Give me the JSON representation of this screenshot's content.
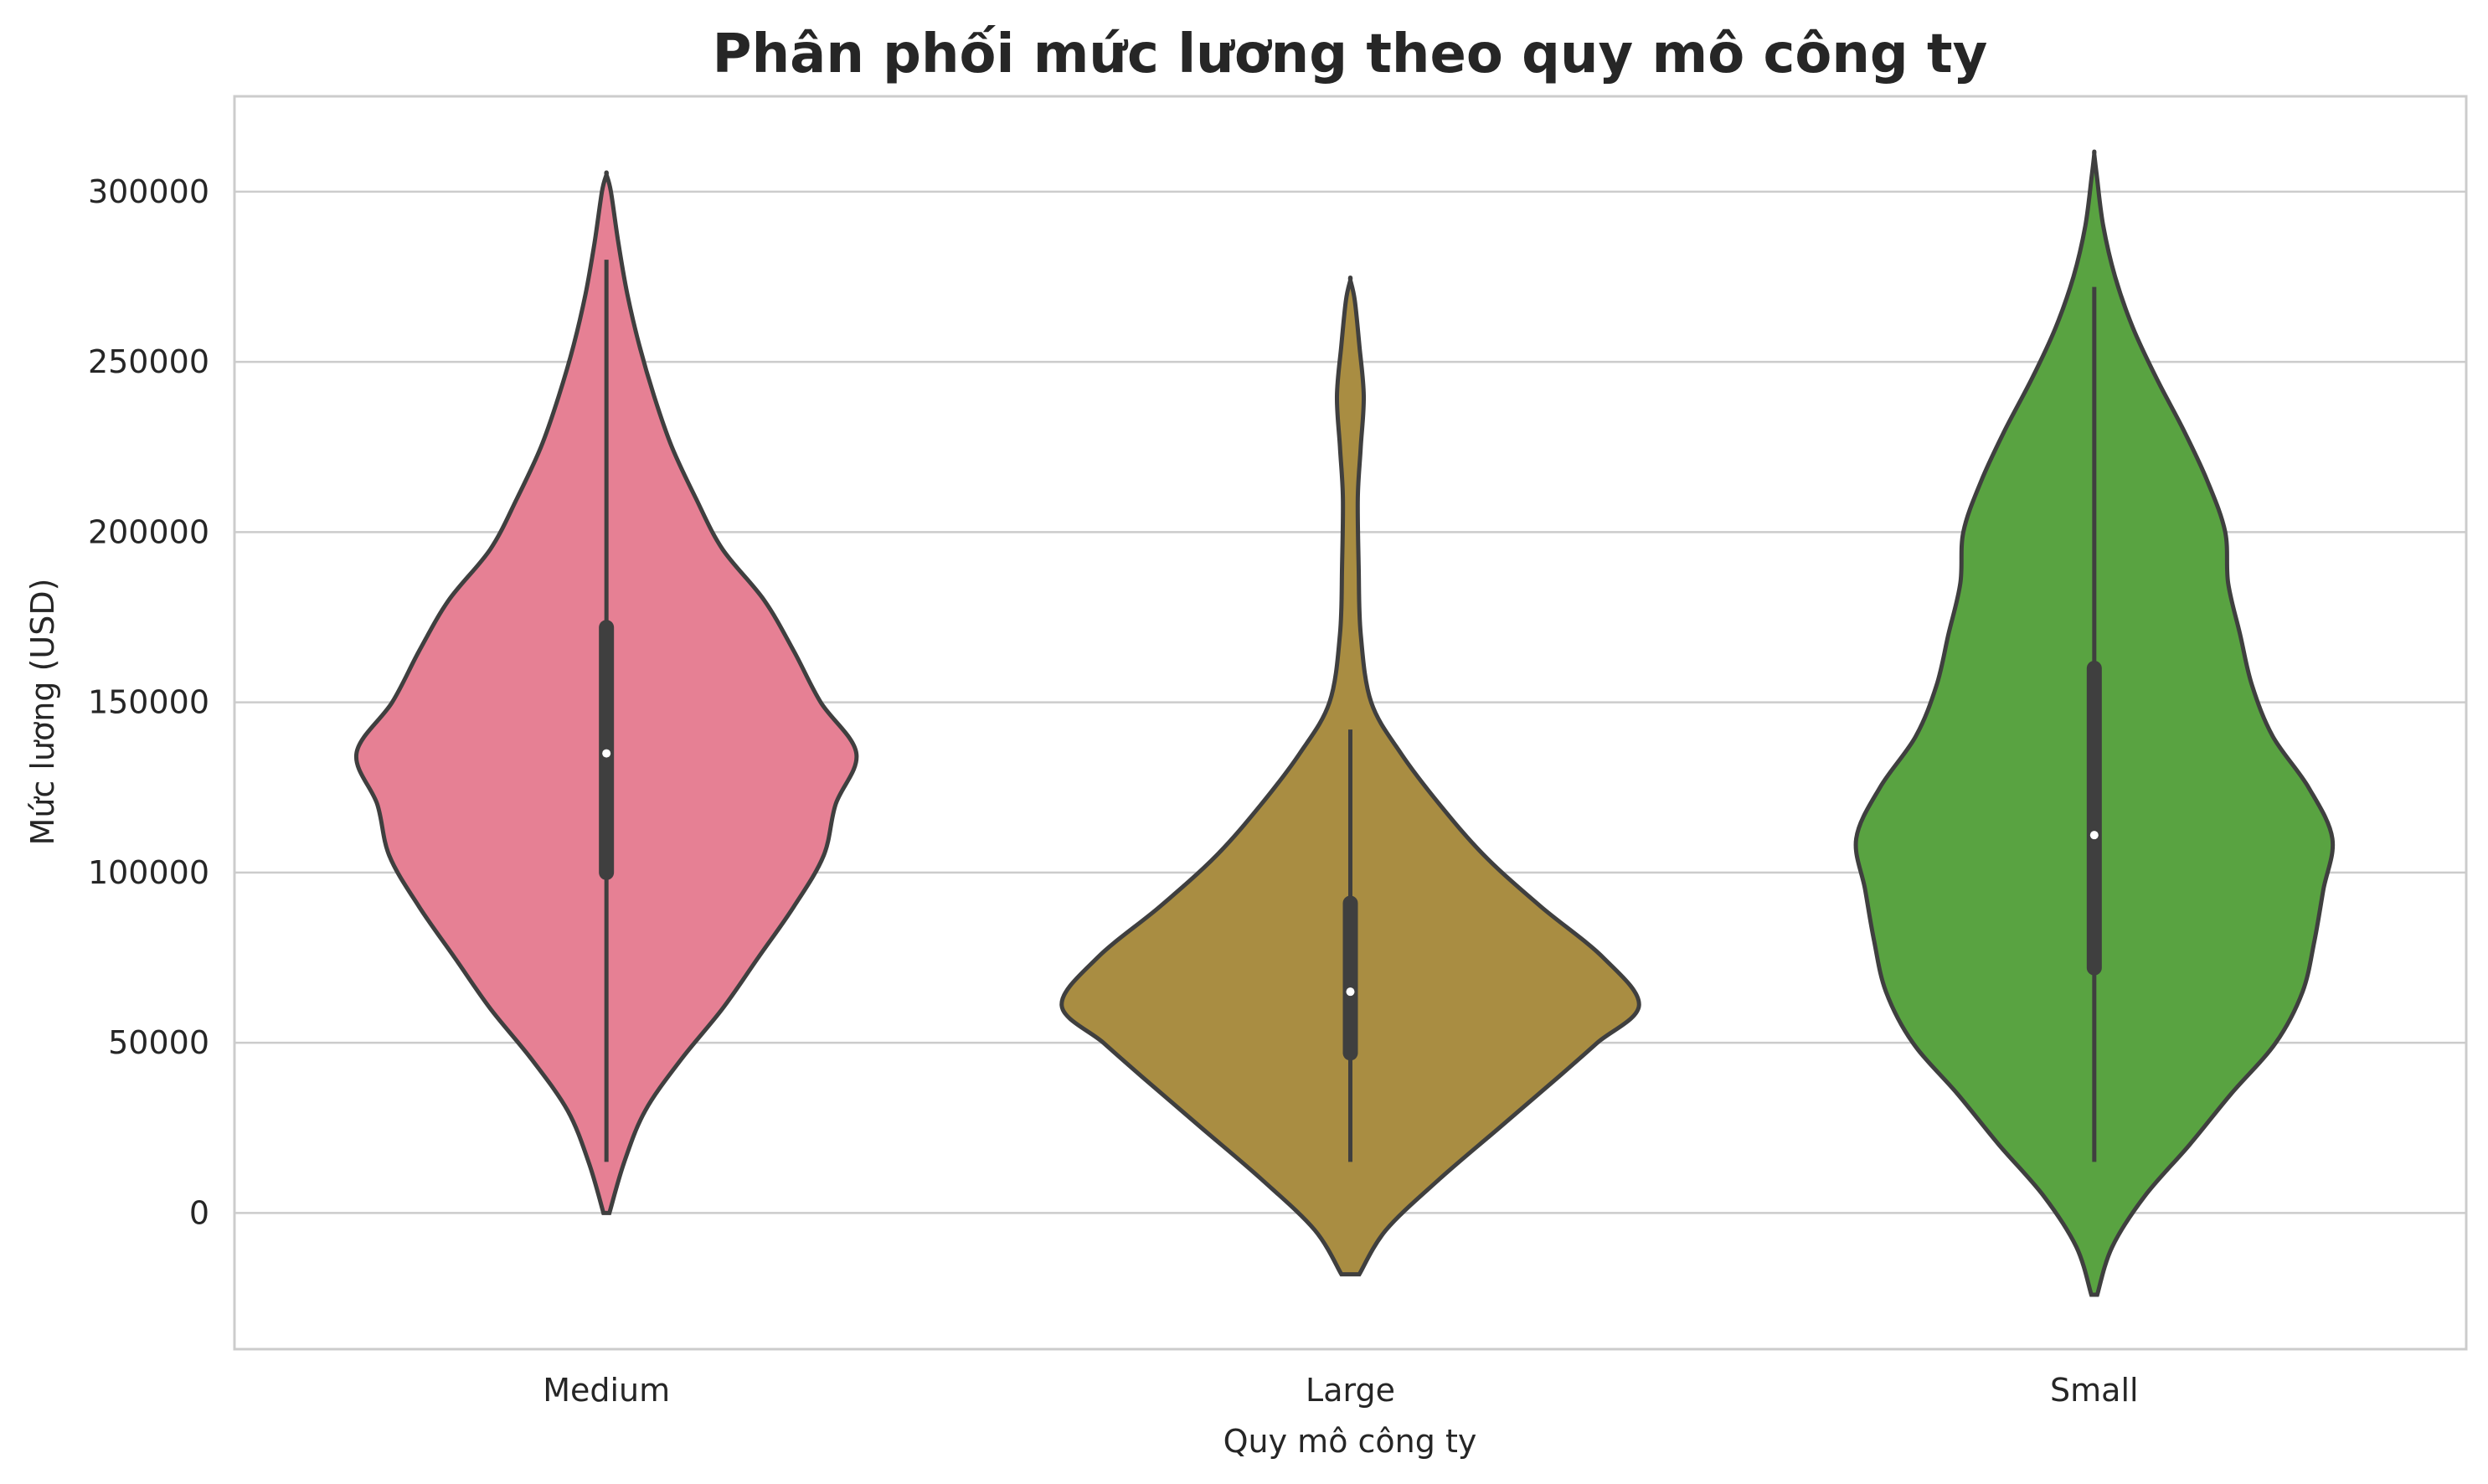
{
  "chart_data": {
    "type": "violin",
    "title": "Phân phối mức lương theo quy mô công ty",
    "xlabel": "Quy mô công ty",
    "ylabel": "Mức lương (USD)",
    "categories": [
      "Medium",
      "Large",
      "Small"
    ],
    "ylim": [
      -40000,
      328000
    ],
    "yticks": [
      0,
      50000,
      100000,
      150000,
      200000,
      250000,
      300000
    ],
    "ytick_labels": [
      "0",
      "50000",
      "100000",
      "150000",
      "200000",
      "250000",
      "300000"
    ],
    "grid": "horizontal",
    "series": [
      {
        "category": "Medium",
        "color": "#e68094",
        "kde_range": [
          0,
          305000
        ],
        "whisker": [
          15000,
          280000
        ],
        "q1": 100000,
        "median": 135000,
        "q3": 172000,
        "density_profile": [
          [
            0,
            0.01
          ],
          [
            15000,
            0.06
          ],
          [
            30000,
            0.13
          ],
          [
            45000,
            0.25
          ],
          [
            60000,
            0.39
          ],
          [
            75000,
            0.51
          ],
          [
            90000,
            0.63
          ],
          [
            105000,
            0.73
          ],
          [
            120000,
            0.77
          ],
          [
            135000,
            0.84
          ],
          [
            150000,
            0.72
          ],
          [
            165000,
            0.63
          ],
          [
            180000,
            0.53
          ],
          [
            195000,
            0.39
          ],
          [
            210000,
            0.3
          ],
          [
            225000,
            0.22
          ],
          [
            240000,
            0.16
          ],
          [
            255000,
            0.11
          ],
          [
            270000,
            0.07
          ],
          [
            285000,
            0.04
          ],
          [
            300000,
            0.015
          ],
          [
            305000,
            0.0
          ]
        ]
      },
      {
        "category": "Large",
        "color": "#a98d42",
        "kde_range": [
          -18000,
          274000
        ],
        "whisker": [
          15000,
          142000
        ],
        "q1": 47000,
        "median": 65000,
        "q3": 91000,
        "density_profile": [
          [
            -18000,
            0.03
          ],
          [
            -5000,
            0.12
          ],
          [
            10000,
            0.3
          ],
          [
            25000,
            0.5
          ],
          [
            40000,
            0.7
          ],
          [
            50000,
            0.83
          ],
          [
            61000,
            0.97
          ],
          [
            75000,
            0.85
          ],
          [
            90000,
            0.64
          ],
          [
            105000,
            0.45
          ],
          [
            120000,
            0.3
          ],
          [
            135000,
            0.17
          ],
          [
            150000,
            0.07
          ],
          [
            170000,
            0.035
          ],
          [
            190000,
            0.028
          ],
          [
            210000,
            0.025
          ],
          [
            225000,
            0.035
          ],
          [
            240000,
            0.045
          ],
          [
            255000,
            0.03
          ],
          [
            268000,
            0.015
          ],
          [
            274000,
            0.0
          ]
        ]
      },
      {
        "category": "Small",
        "color": "#59a341",
        "kde_range": [
          -24000,
          311000
        ],
        "whisker": [
          15000,
          272000
        ],
        "q1": 72000,
        "median": 111000,
        "q3": 160000,
        "density_profile": [
          [
            -24000,
            0.01
          ],
          [
            -10000,
            0.06
          ],
          [
            5000,
            0.17
          ],
          [
            20000,
            0.32
          ],
          [
            35000,
            0.46
          ],
          [
            50000,
            0.61
          ],
          [
            65000,
            0.7
          ],
          [
            80000,
            0.74
          ],
          [
            95000,
            0.77
          ],
          [
            110000,
            0.8
          ],
          [
            125000,
            0.72
          ],
          [
            140000,
            0.6
          ],
          [
            155000,
            0.53
          ],
          [
            170000,
            0.49
          ],
          [
            185000,
            0.45
          ],
          [
            200000,
            0.44
          ],
          [
            215000,
            0.38
          ],
          [
            230000,
            0.3
          ],
          [
            245000,
            0.21
          ],
          [
            260000,
            0.13
          ],
          [
            275000,
            0.07
          ],
          [
            290000,
            0.03
          ],
          [
            305000,
            0.008
          ],
          [
            311000,
            0.0
          ]
        ]
      }
    ]
  }
}
